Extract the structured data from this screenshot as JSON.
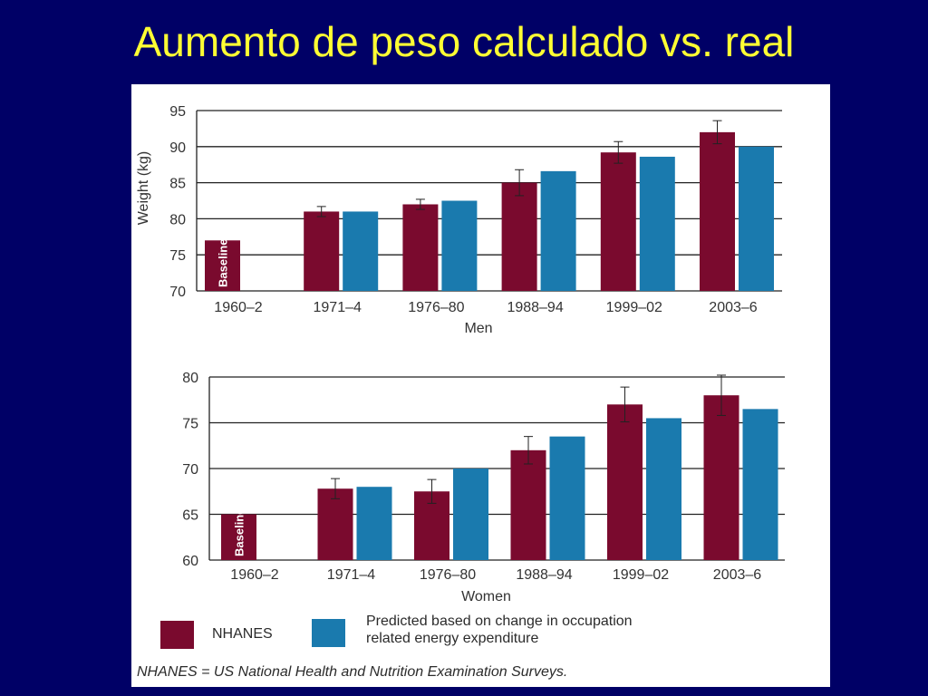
{
  "slide": {
    "title": "Aumento de peso calculado vs. real"
  },
  "colors": {
    "nhanes": "#7a0a2e",
    "predicted": "#1a7aae",
    "background": "#000066",
    "title": "#ffff33"
  },
  "legend": {
    "nhanes": "NHANES",
    "predicted_line1": "Predicted based on change in occupation",
    "predicted_line2": "related energy expenditure"
  },
  "footnote": "NHANES = US National Health and Nutrition Examination Surveys.",
  "chart_data": [
    {
      "type": "bar",
      "xlabel": "Men",
      "ylabel": "Weight (kg)",
      "ylim": [
        70,
        95
      ],
      "yticks": [
        70,
        75,
        80,
        85,
        90,
        95
      ],
      "grid": true,
      "categories": [
        "1960–2",
        "1971–4",
        "1976–80",
        "1988–94",
        "1999–02",
        "2003–6"
      ],
      "baseline_label": "Baseline",
      "series": [
        {
          "name": "NHANES",
          "values": [
            77,
            81,
            82,
            85,
            89.2,
            92
          ],
          "errors": [
            null,
            0.7,
            0.7,
            1.8,
            1.5,
            1.6
          ]
        },
        {
          "name": "Predicted based on change in occupation related energy expenditure",
          "values": [
            null,
            81,
            82.5,
            86.6,
            88.6,
            90
          ]
        }
      ]
    },
    {
      "type": "bar",
      "xlabel": "Women",
      "ylim": [
        60,
        80
      ],
      "yticks": [
        60,
        65,
        70,
        75,
        80
      ],
      "grid": true,
      "categories": [
        "1960–2",
        "1971–4",
        "1976–80",
        "1988–94",
        "1999–02",
        "2003–6"
      ],
      "baseline_label": "Baseline",
      "series": [
        {
          "name": "NHANES",
          "values": [
            65,
            67.8,
            67.5,
            72,
            77,
            78
          ],
          "errors": [
            null,
            1.1,
            1.3,
            1.5,
            1.9,
            2.2
          ]
        },
        {
          "name": "Predicted based on change in occupation related energy expenditure",
          "values": [
            null,
            68,
            70,
            73.5,
            75.5,
            76.5
          ]
        }
      ]
    }
  ]
}
